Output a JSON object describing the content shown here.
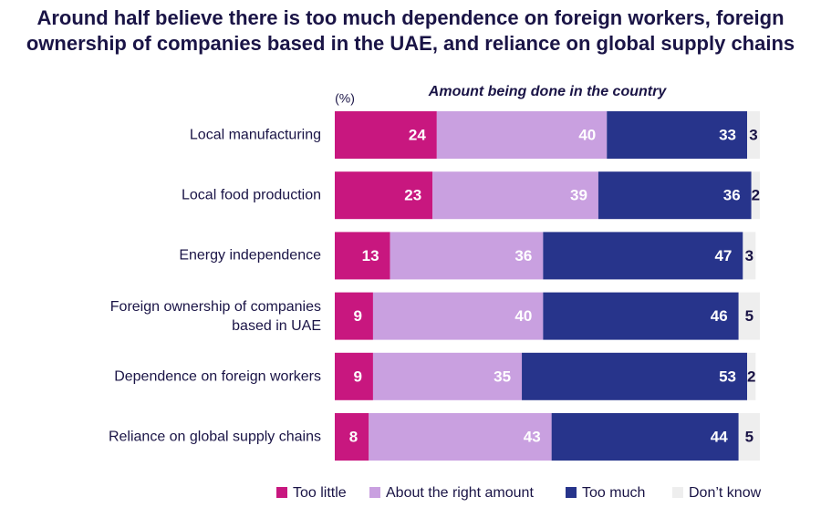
{
  "chart_data": {
    "type": "stacked-bar-horizontal",
    "title": "Around half believe there is too much dependence on foreign workers, foreign ownership of companies based in the UAE, and reliance on global supply chains",
    "subtitle": "Amount being done in the country",
    "unit_label": "(%)",
    "categories": [
      "Local manufacturing",
      "Local food production",
      "Energy independence",
      "Foreign ownership of companies based in UAE",
      "Dependence on foreign workers",
      "Reliance on global supply chains"
    ],
    "series": [
      {
        "name": "Too little",
        "color": "#c8177f",
        "values": [
          24,
          23,
          13,
          9,
          9,
          8
        ]
      },
      {
        "name": "About the right amount",
        "color": "#c9a0e0",
        "values": [
          40,
          39,
          36,
          40,
          35,
          43
        ]
      },
      {
        "name": "Too much",
        "color": "#27348b",
        "values": [
          33,
          36,
          47,
          46,
          53,
          44
        ]
      },
      {
        "name": "Don’t know",
        "color": "#eeeeee",
        "values": [
          3,
          2,
          3,
          5,
          2,
          5
        ]
      }
    ],
    "xlim": [
      0,
      100
    ],
    "legend": "bottom"
  }
}
